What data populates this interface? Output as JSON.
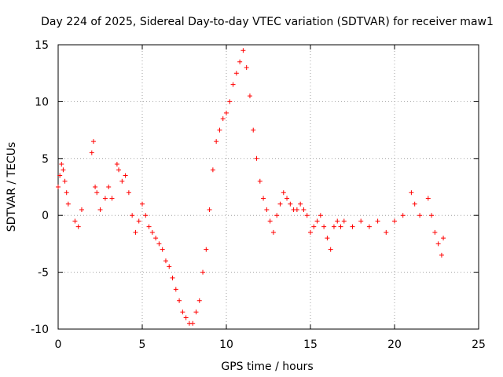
{
  "chart_data": {
    "type": "scatter",
    "title": "Day 224 of 2025, Sidereal Day-to-day VTEC variation (SDTVAR) for receiver maw1",
    "xlabel": "GPS time / hours",
    "ylabel": "SDTVAR / TECUs",
    "xlim": [
      0,
      25
    ],
    "ylim": [
      -10,
      15
    ],
    "xticks": [
      "0",
      "5",
      "10",
      "15",
      "20",
      "25"
    ],
    "yticks": [
      "-10",
      "-5",
      "0",
      "5",
      "10",
      "15"
    ],
    "grid": true,
    "marker": "+",
    "color": "#ff0000",
    "series": [
      {
        "name": "SDTVAR",
        "x": [
          0.0,
          0.1,
          0.2,
          0.3,
          0.4,
          0.5,
          0.6,
          1.0,
          1.2,
          1.4,
          2.0,
          2.1,
          2.2,
          2.3,
          2.5,
          2.8,
          3.0,
          3.2,
          3.5,
          3.6,
          3.8,
          4.0,
          4.2,
          4.4,
          4.6,
          4.8,
          5.0,
          5.2,
          5.4,
          5.6,
          5.8,
          6.0,
          6.2,
          6.4,
          6.6,
          6.8,
          7.0,
          7.2,
          7.4,
          7.6,
          7.8,
          8.0,
          8.2,
          8.4,
          8.6,
          8.8,
          9.0,
          9.2,
          9.4,
          9.6,
          9.8,
          10.0,
          10.2,
          10.4,
          10.6,
          10.8,
          11.0,
          11.2,
          11.4,
          11.6,
          11.8,
          12.0,
          12.2,
          12.4,
          12.6,
          12.8,
          13.0,
          13.2,
          13.4,
          13.6,
          13.8,
          14.0,
          14.2,
          14.4,
          14.6,
          14.8,
          15.0,
          15.2,
          15.4,
          15.6,
          15.8,
          16.0,
          16.2,
          16.4,
          16.6,
          16.8,
          17.0,
          17.5,
          18.0,
          18.5,
          19.0,
          19.5,
          20.0,
          20.5,
          21.0,
          21.2,
          21.5,
          22.0,
          22.2,
          22.4,
          22.6,
          22.8,
          22.9
        ],
        "y": [
          2.5,
          3.5,
          4.5,
          4.0,
          3.0,
          2.0,
          1.0,
          -0.5,
          -1.0,
          0.5,
          5.5,
          6.5,
          2.5,
          2.0,
          0.5,
          1.5,
          2.5,
          1.5,
          4.5,
          4.0,
          3.0,
          3.5,
          2.0,
          0.0,
          -1.5,
          -0.5,
          1.0,
          0.0,
          -1.0,
          -1.5,
          -2.0,
          -2.5,
          -3.0,
          -4.0,
          -4.5,
          -5.5,
          -6.5,
          -7.5,
          -8.5,
          -9.0,
          -9.5,
          -9.5,
          -8.5,
          -7.5,
          -5.0,
          -3.0,
          0.5,
          4.0,
          6.5,
          7.5,
          8.5,
          9.0,
          10.0,
          11.5,
          12.5,
          13.5,
          14.5,
          13.0,
          10.5,
          7.5,
          5.0,
          3.0,
          1.5,
          0.5,
          -0.5,
          -1.5,
          0.0,
          1.0,
          2.0,
          1.5,
          1.0,
          0.5,
          0.5,
          1.0,
          0.5,
          0.0,
          -1.5,
          -1.0,
          -0.5,
          0.0,
          -1.0,
          -2.0,
          -3.0,
          -1.0,
          -0.5,
          -1.0,
          -0.5,
          -1.0,
          -0.5,
          -1.0,
          -0.5,
          -1.5,
          -0.5,
          0.0,
          2.0,
          1.0,
          0.0,
          1.5,
          0.0,
          -1.5,
          -2.5,
          -3.5,
          -2.0
        ]
      }
    ]
  }
}
